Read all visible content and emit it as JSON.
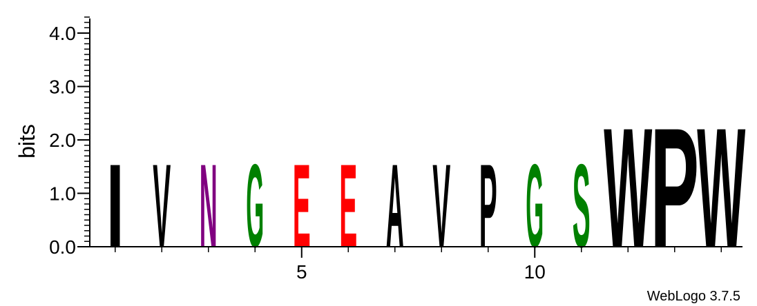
{
  "chart_data": {
    "type": "sequence-logo",
    "ylabel": "bits",
    "ylim": [
      0,
      4.3
    ],
    "yticks": [
      "0.0",
      "1.0",
      "2.0",
      "3.0",
      "4.0"
    ],
    "xticks": [
      "5",
      "10"
    ],
    "xtick_positions": [
      5,
      10
    ],
    "positions": [
      {
        "pos": 1,
        "letter": "I",
        "bits": 1.6,
        "color": "#000000"
      },
      {
        "pos": 2,
        "letter": "V",
        "bits": 1.6,
        "color": "#000000"
      },
      {
        "pos": 3,
        "letter": "N",
        "bits": 1.6,
        "color": "#800080"
      },
      {
        "pos": 4,
        "letter": "G",
        "bits": 1.6,
        "color": "#008000"
      },
      {
        "pos": 5,
        "letter": "E",
        "bits": 1.6,
        "color": "#ff0000"
      },
      {
        "pos": 6,
        "letter": "E",
        "bits": 1.6,
        "color": "#ff0000"
      },
      {
        "pos": 7,
        "letter": "A",
        "bits": 1.6,
        "color": "#000000"
      },
      {
        "pos": 8,
        "letter": "V",
        "bits": 1.6,
        "color": "#000000"
      },
      {
        "pos": 9,
        "letter": "P",
        "bits": 1.6,
        "color": "#000000"
      },
      {
        "pos": 10,
        "letter": "G",
        "bits": 1.6,
        "color": "#008000"
      },
      {
        "pos": 11,
        "letter": "S",
        "bits": 1.6,
        "color": "#008000"
      },
      {
        "pos": 12,
        "letter": "W",
        "bits": 2.3,
        "color": "#000000"
      },
      {
        "pos": 13,
        "letter": "P",
        "bits": 2.3,
        "color": "#000000"
      },
      {
        "pos": 14,
        "letter": "W",
        "bits": 2.3,
        "color": "#000000"
      }
    ]
  },
  "credit": "WebLogo 3.7.5"
}
